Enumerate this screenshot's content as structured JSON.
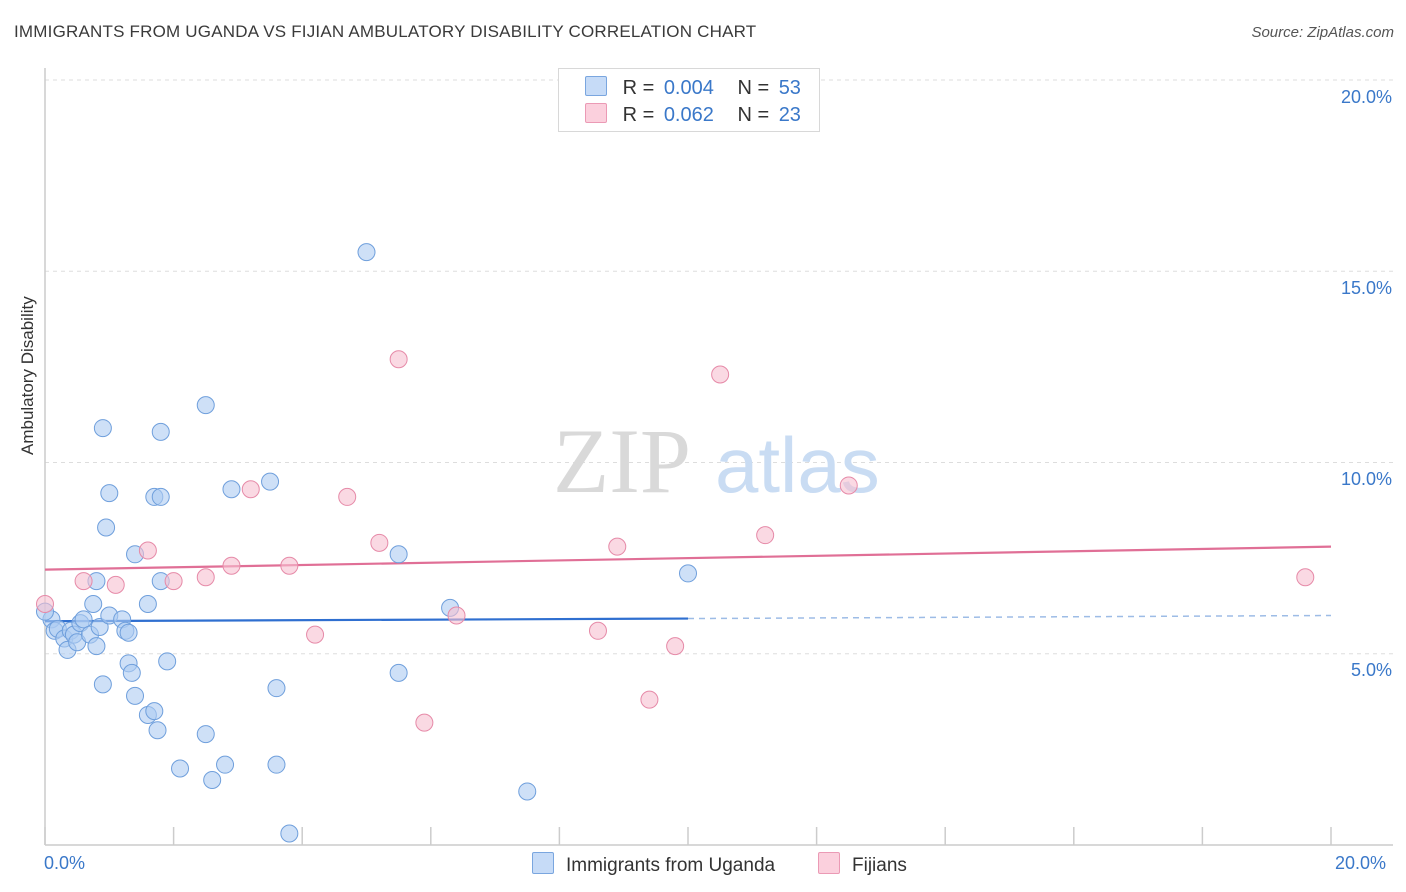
{
  "title": "IMMIGRANTS FROM UGANDA VS FIJIAN AMBULATORY DISABILITY CORRELATION CHART",
  "source": "Source: ZipAtlas.com",
  "watermark": {
    "zip": "ZIP",
    "atlas": "atlas"
  },
  "legend": {
    "rows": [
      {
        "r_label": "R =",
        "r_value": "0.004",
        "n_label": "N =",
        "n_value": "53"
      },
      {
        "r_label": "R =",
        "r_value": "0.062",
        "n_label": "N =",
        "n_value": "23"
      }
    ]
  },
  "bottom_legend": {
    "series1": "Immigrants from Uganda",
    "series2": "Fijians"
  },
  "axis": {
    "x_min_label": "0.0%",
    "x_max_label": "20.0%",
    "y_ticks": [
      "20.0%",
      "15.0%",
      "10.0%",
      "5.0%"
    ],
    "ylabel": "Ambulatory Disability"
  },
  "colors": {
    "blue_fill": "#aecbf2",
    "blue_stroke": "#6f9fdc",
    "blue_line": "#2f6fd0",
    "pink_fill": "#f7bfd0",
    "pink_stroke": "#e68aa8",
    "pink_line": "#e06f96",
    "accent_text": "#3a78c9"
  },
  "chart_data": {
    "type": "scatter",
    "xlabel": "",
    "ylabel": "Ambulatory Disability",
    "xlim": [
      0,
      20
    ],
    "ylim": [
      0,
      20
    ],
    "grid": true,
    "series": [
      {
        "name": "Immigrants from Uganda",
        "color": "#aecbf2",
        "trend": {
          "x0": 0,
          "y0": 5.85,
          "x1": 10,
          "y1": 5.92,
          "dashed_to_x": 20,
          "dashed_y": 6.0
        },
        "points": [
          [
            0.1,
            5.9
          ],
          [
            0.15,
            5.6
          ],
          [
            0.2,
            5.65
          ],
          [
            0.3,
            5.4
          ],
          [
            0.35,
            5.1
          ],
          [
            0.4,
            5.6
          ],
          [
            0.45,
            5.5
          ],
          [
            0.5,
            5.3
          ],
          [
            0.55,
            5.8
          ],
          [
            0.6,
            5.9
          ],
          [
            0.7,
            5.5
          ],
          [
            0.75,
            6.3
          ],
          [
            0.8,
            5.2
          ],
          [
            0.85,
            5.7
          ],
          [
            0.9,
            4.2
          ],
          [
            0.8,
            6.9
          ],
          [
            1.0,
            6.0
          ],
          [
            0.9,
            10.9
          ],
          [
            0.95,
            8.3
          ],
          [
            1.0,
            9.2
          ],
          [
            1.2,
            5.9
          ],
          [
            1.25,
            5.6
          ],
          [
            1.3,
            5.55
          ],
          [
            1.3,
            4.75
          ],
          [
            1.35,
            4.5
          ],
          [
            1.4,
            3.9
          ],
          [
            1.4,
            7.6
          ],
          [
            1.6,
            6.3
          ],
          [
            1.7,
            9.1
          ],
          [
            1.6,
            3.4
          ],
          [
            1.7,
            3.5
          ],
          [
            1.75,
            3.0
          ],
          [
            1.8,
            9.1
          ],
          [
            1.8,
            6.9
          ],
          [
            1.8,
            10.8
          ],
          [
            1.9,
            4.8
          ],
          [
            2.1,
            2.0
          ],
          [
            2.5,
            2.9
          ],
          [
            2.5,
            11.5
          ],
          [
            2.6,
            1.7
          ],
          [
            2.8,
            2.1
          ],
          [
            2.9,
            9.3
          ],
          [
            3.5,
            9.5
          ],
          [
            3.6,
            2.1
          ],
          [
            3.6,
            4.1
          ],
          [
            3.8,
            0.3
          ],
          [
            5.0,
            15.5
          ],
          [
            5.5,
            4.5
          ],
          [
            5.5,
            7.6
          ],
          [
            6.3,
            6.2
          ],
          [
            7.5,
            1.4
          ],
          [
            10.0,
            7.1
          ],
          [
            0.0,
            6.1
          ]
        ]
      },
      {
        "name": "Fijians",
        "color": "#f7bfd0",
        "trend": {
          "x0": 0,
          "y0": 7.2,
          "x1": 20,
          "y1": 7.8
        },
        "points": [
          [
            0.0,
            6.3
          ],
          [
            0.6,
            6.9
          ],
          [
            1.1,
            6.8
          ],
          [
            1.6,
            7.7
          ],
          [
            2.0,
            6.9
          ],
          [
            2.5,
            7.0
          ],
          [
            2.9,
            7.3
          ],
          [
            3.2,
            9.3
          ],
          [
            3.8,
            7.3
          ],
          [
            4.2,
            5.5
          ],
          [
            4.7,
            9.1
          ],
          [
            5.2,
            7.9
          ],
          [
            5.5,
            12.7
          ],
          [
            5.9,
            3.2
          ],
          [
            6.4,
            6.0
          ],
          [
            8.6,
            5.6
          ],
          [
            8.9,
            7.8
          ],
          [
            9.4,
            3.8
          ],
          [
            9.8,
            5.2
          ],
          [
            10.5,
            12.3
          ],
          [
            11.2,
            8.1
          ],
          [
            12.5,
            9.4
          ],
          [
            19.6,
            7.0
          ]
        ]
      }
    ]
  }
}
